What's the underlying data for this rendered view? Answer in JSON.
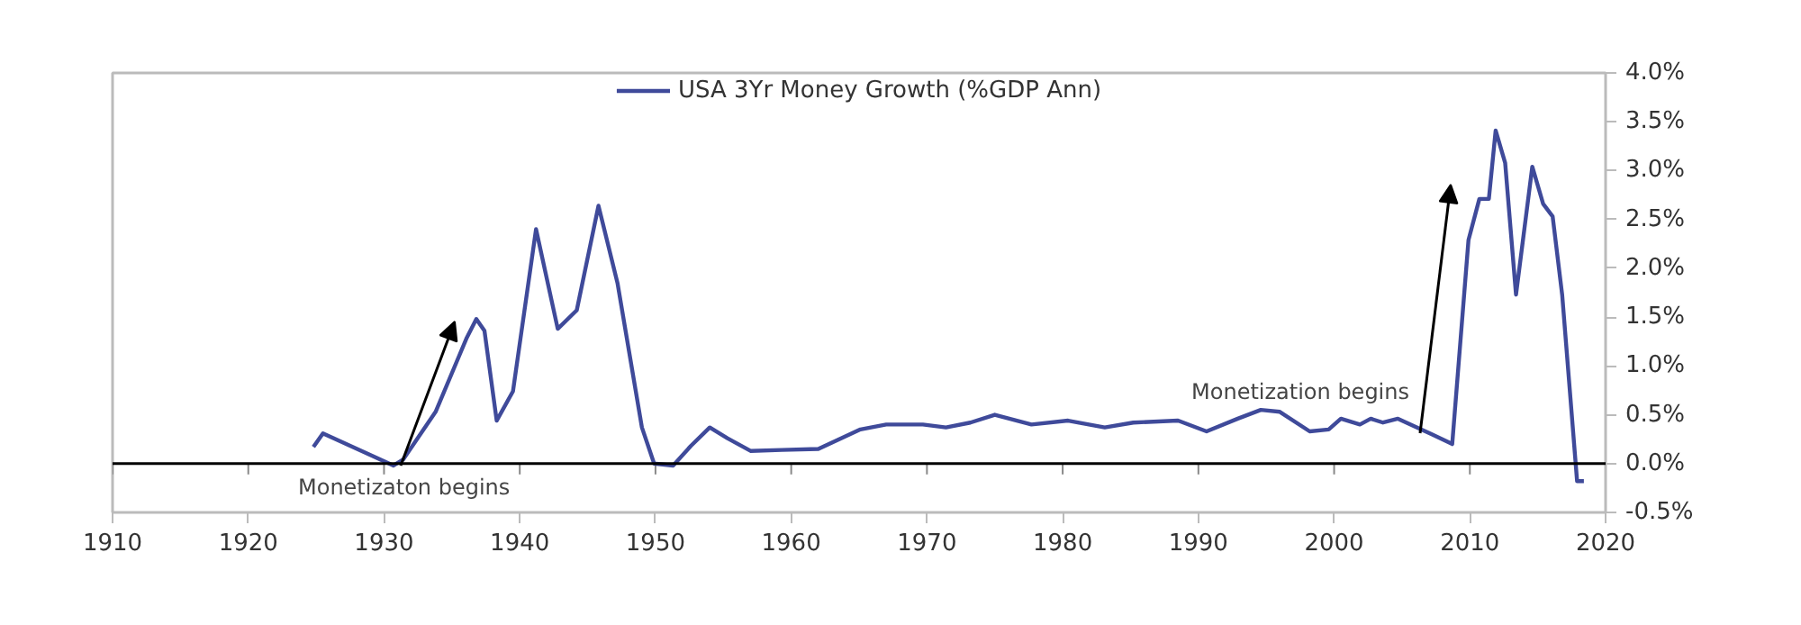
{
  "chart_data": {
    "type": "line",
    "series": [
      {
        "name": "USA 3Yr Money Growth (%GDP Ann)",
        "color": "#3f4a9a",
        "x": [
          1924.8,
          1925.5,
          1930.7,
          1931.4,
          1933.8,
          1936.1,
          1936.8,
          1937.4,
          1938.3,
          1939.5,
          1941.2,
          1942.8,
          1944.2,
          1945.8,
          1947.2,
          1949.0,
          1949.9,
          1951.3,
          1952.6,
          1954.0,
          1955.3,
          1957.0,
          1959.3,
          1962.0,
          1965.1,
          1967.0,
          1969.7,
          1971.4,
          1973.2,
          1975.0,
          1977.7,
          1980.4,
          1983.1,
          1985.2,
          1988.5,
          1990.6,
          1992.9,
          1994.6,
          1996.0,
          1998.2,
          1999.6,
          2000.5,
          2001.9,
          2002.7,
          2003.6,
          2004.7,
          2007.2,
          2008.7,
          2009.9,
          2010.7,
          2011.4,
          2011.9,
          2012.6,
          2013.4,
          2014.6,
          2015.4,
          2016.1,
          2016.8,
          2017.9,
          2018.4
        ],
        "values": [
          0.17,
          0.31,
          -0.02,
          0.04,
          0.53,
          1.29,
          1.48,
          1.36,
          0.44,
          0.74,
          2.4,
          1.38,
          1.57,
          2.64,
          1.85,
          0.37,
          0.0,
          -0.02,
          0.18,
          0.37,
          0.26,
          0.13,
          0.14,
          0.15,
          0.35,
          0.4,
          0.4,
          0.37,
          0.42,
          0.5,
          0.4,
          0.44,
          0.37,
          0.42,
          0.44,
          0.33,
          0.46,
          0.55,
          0.53,
          0.33,
          0.35,
          0.46,
          0.4,
          0.46,
          0.42,
          0.46,
          0.3,
          0.2,
          2.29,
          2.71,
          2.71,
          3.41,
          3.08,
          1.73,
          3.04,
          2.66,
          2.53,
          1.73,
          -0.18,
          -0.18
        ]
      }
    ],
    "xlim": [
      1910,
      2020
    ],
    "xticks": [
      1910,
      1920,
      1930,
      1940,
      1950,
      1960,
      1970,
      1980,
      1990,
      2000,
      2010,
      2020
    ],
    "ylim": [
      -0.5,
      4.0
    ],
    "yticks": [
      {
        "value": -0.5,
        "label": "-0.5%"
      },
      {
        "value": 0.0,
        "label": "0.0%"
      },
      {
        "value": 0.5,
        "label": "0.5%"
      },
      {
        "value": 1.0,
        "label": "1.0%"
      },
      {
        "value": 1.5,
        "label": "1.5%"
      },
      {
        "value": 2.0,
        "label": "2.0%"
      },
      {
        "value": 2.5,
        "label": "2.5%"
      },
      {
        "value": 3.0,
        "label": "3.0%"
      },
      {
        "value": 3.5,
        "label": "3.5%"
      },
      {
        "value": 4.0,
        "label": "4.0%"
      }
    ],
    "ref_lines": [
      {
        "axis": "y",
        "value": 0,
        "color": "#000000"
      }
    ],
    "annotations": [
      "Monetizaton begins",
      "Monetization begins"
    ],
    "grid": false,
    "legend": "top",
    "line_style": "solid",
    "marker": "none"
  }
}
